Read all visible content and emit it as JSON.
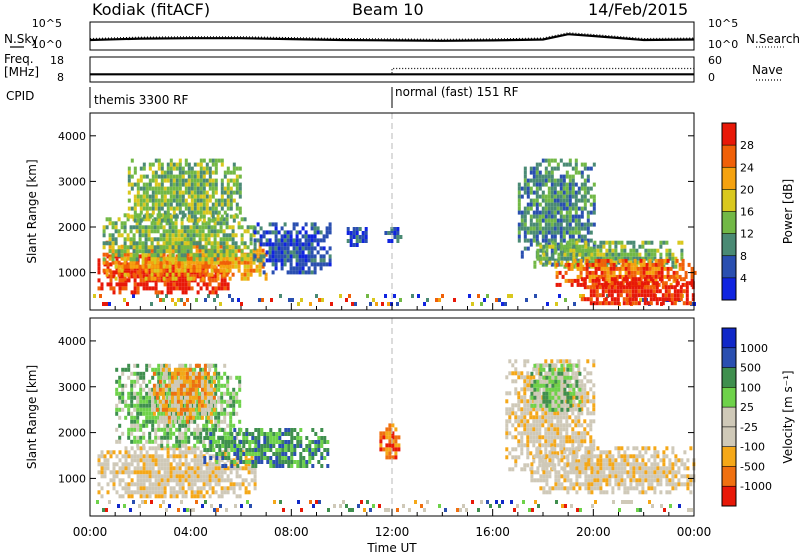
{
  "header": {
    "radar": "Kodiak (fitACF)",
    "beam": "Beam 10",
    "date": "14/Feb/2015"
  },
  "colors": {
    "power": [
      "#1024e0",
      "#2a4fb0",
      "#4a8a74",
      "#72b846",
      "#d9c81e",
      "#f5a20f",
      "#f06008",
      "#e81808"
    ],
    "velocity": [
      "#e81808",
      "#f07010",
      "#f5a818",
      "#cfc9b8",
      "#cfc9b8",
      "#6ed24a",
      "#3f8f4e",
      "#2a4fb0",
      "#1028c8"
    ]
  },
  "chart_data": [
    {
      "type": "line",
      "panel": "noise",
      "left_label": "N.Sky",
      "right_label": "N.Search",
      "left_ticks": [
        "10^5",
        "10^0"
      ],
      "right_ticks": [
        "10^5",
        "10^0"
      ],
      "x": [
        0,
        2,
        4,
        6,
        8,
        10,
        12,
        14,
        16,
        18,
        19,
        20,
        22,
        24
      ],
      "series": [
        {
          "values": [
            1.6,
            1.9,
            2.0,
            2.0,
            1.8,
            1.6,
            1.5,
            1.4,
            1.5,
            1.7,
            2.9,
            2.5,
            1.6,
            1.7
          ]
        }
      ]
    },
    {
      "type": "line",
      "panel": "frequency",
      "left_label": "Freq. [MHz]",
      "right_label": "Nave",
      "left_ticks": [
        "18",
        "8"
      ],
      "right_ticks": [
        "60",
        "0"
      ],
      "x": [
        0,
        12,
        12,
        24
      ],
      "series": [
        {
          "values": [
            10.5,
            10.5,
            10.5,
            10.5
          ]
        },
        {
          "values": [
            10.5,
            10.5,
            13.5,
            13.5
          ]
        }
      ]
    },
    {
      "type": "table",
      "panel": "cpid",
      "label": "CPID",
      "modes": [
        {
          "name": "themis 3300 RF",
          "start_ut": 0
        },
        {
          "name": "normal (fast) 151 RF",
          "start_ut": 12
        }
      ]
    },
    {
      "type": "heatmap",
      "panel": "power",
      "ylabel": "Slant Range [km]",
      "yticks": [
        1000,
        2000,
        3000,
        4000
      ],
      "ylim": [
        180,
        4500
      ],
      "xlim": [
        0,
        24
      ],
      "colorbar_label": "Power [dB]",
      "colorbar_ticks": [
        4,
        8,
        12,
        16,
        20,
        24,
        28
      ],
      "clim": [
        0,
        32
      ],
      "regions": [
        {
          "x": [
            0.3,
            5.5
          ],
          "y": [
            600,
            1400
          ],
          "level": 7
        },
        {
          "x": [
            0.5,
            7.0
          ],
          "y": [
            900,
            1700
          ],
          "level": 5
        },
        {
          "x": [
            0.5,
            6.5
          ],
          "y": [
            1300,
            2300
          ],
          "level": 3
        },
        {
          "x": [
            1.5,
            6.0
          ],
          "y": [
            2100,
            3500
          ],
          "level": 3
        },
        {
          "x": [
            6.5,
            9.5
          ],
          "y": [
            1000,
            2100
          ],
          "level": 1
        },
        {
          "x": [
            10.2,
            11.0
          ],
          "y": [
            1600,
            2000
          ],
          "level": 1
        },
        {
          "x": [
            11.7,
            12.3
          ],
          "y": [
            1700,
            2000
          ],
          "level": 1
        },
        {
          "x": [
            17.0,
            20.0
          ],
          "y": [
            1200,
            3500
          ],
          "level": 2
        },
        {
          "x": [
            17.5,
            23.5
          ],
          "y": [
            1100,
            1700
          ],
          "level": 3
        },
        {
          "x": [
            18.5,
            24.0
          ],
          "y": [
            700,
            1300
          ],
          "level": 6
        },
        {
          "x": [
            19.5,
            24.0
          ],
          "y": [
            300,
            900
          ],
          "level": 7
        }
      ]
    },
    {
      "type": "heatmap",
      "panel": "velocity",
      "ylabel": "Slant Range [km]",
      "yticks": [
        1000,
        2000,
        3000,
        4000
      ],
      "ylim": [
        180,
        4500
      ],
      "xlim": [
        0,
        24
      ],
      "colorbar_label": "Velocity [m s^-1]",
      "colorbar_ticks": [
        -1000,
        -500,
        -100,
        -25,
        25,
        100,
        500,
        1000
      ],
      "regions": [
        {
          "x": [
            0.3,
            6.5
          ],
          "y": [
            600,
            1700
          ],
          "level": 3
        },
        {
          "x": [
            1.0,
            6.0
          ],
          "y": [
            1700,
            3500
          ],
          "level": 5
        },
        {
          "x": [
            2.5,
            5.0
          ],
          "y": [
            2200,
            3500
          ],
          "level": 2
        },
        {
          "x": [
            4.5,
            9.5
          ],
          "y": [
            1300,
            2100
          ],
          "level": 6
        },
        {
          "x": [
            11.5,
            12.3
          ],
          "y": [
            1500,
            2200
          ],
          "level": 1
        },
        {
          "x": [
            16.5,
            20.0
          ],
          "y": [
            1200,
            3600
          ],
          "level": 3
        },
        {
          "x": [
            17.5,
            24.0
          ],
          "y": [
            700,
            1700
          ],
          "level": 3
        },
        {
          "x": [
            17.5,
            19.5
          ],
          "y": [
            2500,
            3500
          ],
          "level": 5
        }
      ]
    }
  ],
  "axes": {
    "xlabel": "Time UT",
    "xticks": [
      "00:00",
      "04:00",
      "08:00",
      "12:00",
      "16:00",
      "20:00",
      "00:00"
    ]
  }
}
